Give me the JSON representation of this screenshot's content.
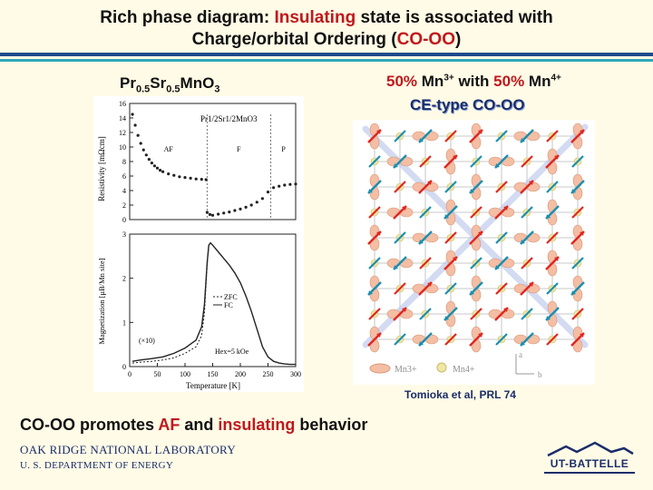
{
  "slide": {
    "title_line1_pre": "Rich phase diagram: ",
    "title_line1_red": "Insulating",
    "title_line1_post": " state is associated with",
    "title_line2_pre": "Charge/orbital Ordering (",
    "title_line2_red": "CO-OO",
    "title_line2_post": ")"
  },
  "left": {
    "formula_pr": "Pr",
    "formula_sub1": "0.5",
    "formula_sr": "Sr",
    "formula_sub2": "0.5",
    "formula_mn": "MnO",
    "formula_sub3": "3"
  },
  "right": {
    "mix_pct1": "50%",
    "mix_mn1": " Mn",
    "mix_sup1": "3+",
    "mix_with": " with ",
    "mix_pct2": "50%",
    "mix_mn2": " Mn",
    "mix_sup2": "4+",
    "cetype": "CE-type CO-OO"
  },
  "reference": "Tomioka et al, PRL 74",
  "conclusion": {
    "pre": "CO-OO promotes ",
    "red1": "AF",
    "mid": " and ",
    "red2": "insulating",
    "post": " behavior"
  },
  "footer": {
    "lab_line1": "OAK RIDGE NATIONAL LABORATORY",
    "lab_line2": "U. S. DEPARTMENT OF ENERGY",
    "logo": "UT-BATTELLE"
  },
  "colors": {
    "accent_red": "#c0181c",
    "navy": "#1a2d6a",
    "teal": "#2fa7b8"
  },
  "chart_data": [
    {
      "type": "scatter",
      "inset_label": "Pr1/2Sr1/2MnO3",
      "ylabel": "Resistivity [mΩcm]",
      "yticks": [
        "16",
        "14",
        "12",
        "10",
        "8",
        "6",
        "4",
        "2",
        "0"
      ],
      "ylim": [
        0,
        16
      ],
      "xlim": [
        0,
        300
      ],
      "phase_labels": [
        "AF",
        "F",
        "P"
      ],
      "x": [
        5,
        10,
        15,
        20,
        25,
        30,
        35,
        40,
        45,
        50,
        55,
        60,
        70,
        80,
        90,
        100,
        110,
        120,
        130,
        138,
        140,
        145,
        150,
        160,
        170,
        180,
        190,
        200,
        210,
        220,
        230,
        240,
        250,
        260,
        270,
        280,
        290,
        300
      ],
      "y": [
        14.5,
        13,
        11.6,
        10.5,
        9.6,
        8.9,
        8.3,
        7.8,
        7.4,
        7.1,
        6.8,
        6.6,
        6.3,
        6.1,
        5.9,
        5.8,
        5.7,
        5.6,
        5.55,
        5.5,
        1.0,
        0.7,
        0.6,
        0.75,
        0.9,
        1.05,
        1.25,
        1.45,
        1.7,
        2.0,
        2.4,
        2.9,
        3.8,
        4.4,
        4.6,
        4.75,
        4.85,
        4.9
      ]
    },
    {
      "type": "line",
      "ylabel": "Magnetization [μB/Mn site]",
      "xlabel": "Temperature [K]",
      "yticks": [
        "3",
        "2",
        "1",
        "0"
      ],
      "xticks": [
        "0",
        "50",
        "100",
        "150",
        "200",
        "250",
        "300"
      ],
      "ylim": [
        0,
        3
      ],
      "xlim": [
        0,
        300
      ],
      "legend": [
        "ZFC",
        "FC"
      ],
      "annotations": [
        "(×10)",
        "Hex=5 kOe"
      ],
      "series": [
        {
          "name": "FC",
          "x": [
            5,
            20,
            40,
            60,
            80,
            100,
            120,
            130,
            135,
            140,
            143,
            146,
            150,
            160,
            170,
            180,
            190,
            200,
            210,
            220,
            230,
            240,
            250,
            260,
            270,
            280,
            290,
            300
          ],
          "y": [
            0.12,
            0.15,
            0.18,
            0.22,
            0.3,
            0.42,
            0.6,
            0.9,
            1.4,
            2.35,
            2.75,
            2.8,
            2.75,
            2.6,
            2.45,
            2.3,
            2.12,
            1.9,
            1.6,
            1.25,
            0.85,
            0.45,
            0.22,
            0.12,
            0.08,
            0.06,
            0.05,
            0.05
          ]
        },
        {
          "name": "ZFC",
          "x": [
            5,
            20,
            40,
            60,
            80,
            100,
            120,
            130,
            135,
            140,
            143
          ],
          "y": [
            0.08,
            0.1,
            0.12,
            0.15,
            0.2,
            0.3,
            0.45,
            0.7,
            1.2,
            2.3,
            2.75
          ]
        }
      ]
    }
  ],
  "lattice": {
    "legend_mn3": "Mn3+",
    "legend_mn4": "Mn4+",
    "axis_a": "a",
    "axis_b": "b"
  }
}
